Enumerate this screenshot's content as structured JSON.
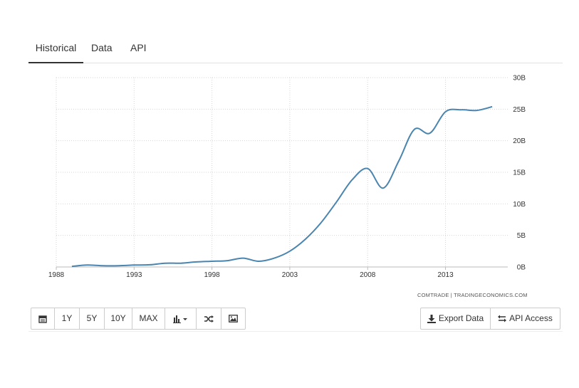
{
  "tabs": [
    {
      "label": "Historical",
      "active": true
    },
    {
      "label": "Data",
      "active": false
    },
    {
      "label": "API",
      "active": false
    }
  ],
  "source_note": "COMTRADE | TRADINGECONOMICS.COM",
  "toolbar_left": {
    "calendar_icon": "calendar-icon",
    "range_buttons": [
      "1Y",
      "5Y",
      "10Y",
      "MAX"
    ],
    "chart_type_icon": "bar-chart-icon",
    "compare_icon": "shuffle-icon",
    "image_icon": "image-icon"
  },
  "toolbar_right": {
    "export_label": "Export Data",
    "api_label": "API Access"
  },
  "chart_data": {
    "type": "line",
    "x_tick_labels": [
      "1988",
      "1993",
      "1998",
      "2003",
      "2008",
      "2013"
    ],
    "y_tick_labels": [
      "0B",
      "5B",
      "10B",
      "15B",
      "20B",
      "25B",
      "30B"
    ],
    "xlim": [
      1988,
      2017
    ],
    "ylim": [
      0,
      30
    ],
    "grid": true,
    "color": "#4a85b0",
    "series": [
      {
        "x": [
          1989,
          1990,
          1991,
          1992,
          1993,
          1994,
          1995,
          1996,
          1997,
          1998,
          1999,
          2000,
          2001,
          2002,
          2003,
          2004,
          2005,
          2006,
          2007,
          2008,
          2009,
          2010,
          2011,
          2012,
          2013,
          2014,
          2015,
          2016
        ],
        "values": [
          0.1,
          0.3,
          0.2,
          0.2,
          0.3,
          0.35,
          0.6,
          0.6,
          0.8,
          0.9,
          1.0,
          1.4,
          0.9,
          1.4,
          2.5,
          4.4,
          7.0,
          10.3,
          13.8,
          15.6,
          12.5,
          16.8,
          21.8,
          21.2,
          24.6,
          24.9,
          24.8,
          25.4
        ]
      }
    ]
  }
}
